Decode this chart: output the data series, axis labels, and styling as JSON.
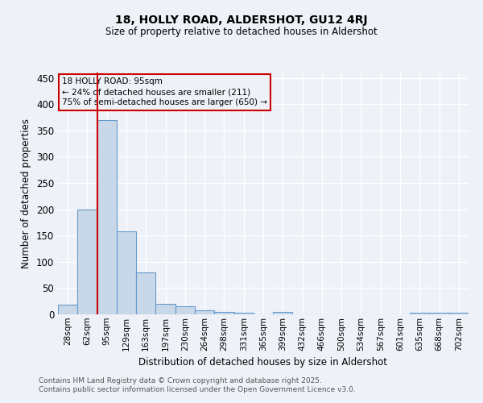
{
  "title1": "18, HOLLY ROAD, ALDERSHOT, GU12 4RJ",
  "title2": "Size of property relative to detached houses in Aldershot",
  "xlabel": "Distribution of detached houses by size in Aldershot",
  "ylabel": "Number of detached properties",
  "annotation_title": "18 HOLLY ROAD: 95sqm",
  "annotation_line1": "← 24% of detached houses are smaller (211)",
  "annotation_line2": "75% of semi-detached houses are larger (650) →",
  "red_line_index": 1.5,
  "categories": [
    "28sqm",
    "62sqm",
    "95sqm",
    "129sqm",
    "163sqm",
    "197sqm",
    "230sqm",
    "264sqm",
    "298sqm",
    "331sqm",
    "365sqm",
    "399sqm",
    "432sqm",
    "466sqm",
    "500sqm",
    "534sqm",
    "567sqm",
    "601sqm",
    "635sqm",
    "668sqm",
    "702sqm"
  ],
  "values": [
    18,
    200,
    370,
    158,
    80,
    20,
    15,
    8,
    5,
    3,
    0,
    4,
    0,
    0,
    0,
    0,
    0,
    0,
    3,
    3,
    3
  ],
  "bar_color": "#c8d8e8",
  "bar_edge_color": "#6699cc",
  "red_line_color": "#cc0000",
  "ylim": [
    0,
    460
  ],
  "yticks": [
    0,
    50,
    100,
    150,
    200,
    250,
    300,
    350,
    400,
    450
  ],
  "background_color": "#eef2f8",
  "grid_color": "#ffffff",
  "footer1": "Contains HM Land Registry data © Crown copyright and database right 2025.",
  "footer2": "Contains public sector information licensed under the Open Government Licence v3.0."
}
